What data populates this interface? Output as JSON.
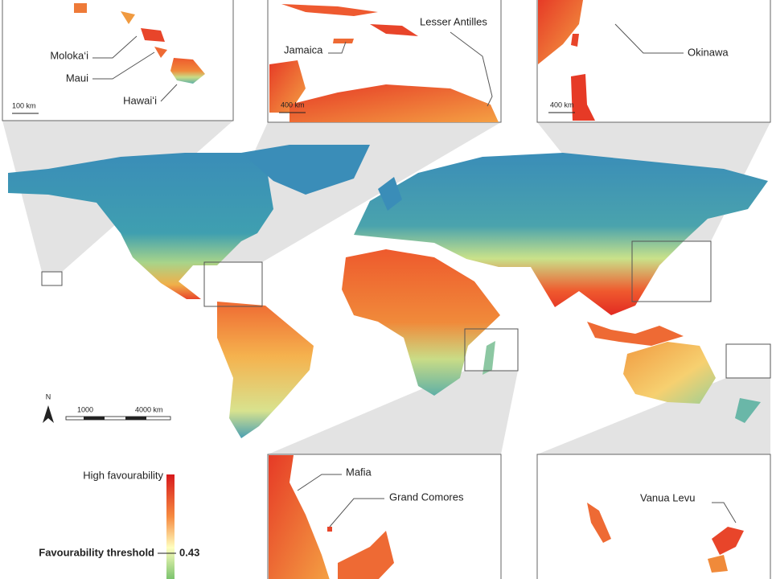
{
  "insets": [
    {
      "labels": [
        "Moloka‘i",
        "Maui",
        "Hawaiʻi"
      ],
      "scale": "100 km"
    },
    {
      "labels": [
        "Jamaica",
        "Lesser Antilles"
      ],
      "scale": "400 km"
    },
    {
      "labels": [
        "Okinawa"
      ],
      "scale": "400 km"
    },
    {
      "labels": [
        "Mafia",
        "Grand Comores"
      ]
    },
    {
      "labels": [
        "Vanua Levu"
      ]
    }
  ],
  "north": "N",
  "scale_bar": {
    "start": "1000",
    "end": "4000 km"
  },
  "legend": {
    "high_label": "High favourability",
    "threshold_label": "Favourability threshold",
    "threshold": 0.43
  }
}
